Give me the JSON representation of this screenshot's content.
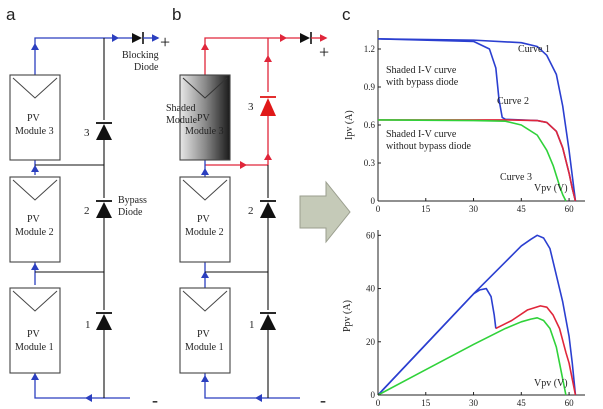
{
  "panels": {
    "a": {
      "letter": "a",
      "modules": [
        "PV",
        "Module 3",
        "PV",
        "Module 2",
        "PV",
        "Module 1"
      ],
      "diode_numbers": [
        "3",
        "2",
        "1"
      ],
      "blocking_label": [
        "Blocking",
        "Diode"
      ],
      "bypass_label": [
        "Bypass",
        "Diode"
      ],
      "plus": "+",
      "minus": "-"
    },
    "b": {
      "letter": "b",
      "shaded_label": [
        "Shaded",
        "Module"
      ],
      "modules": [
        "PV",
        "Module 3",
        "PV",
        "Module 2",
        "PV",
        "Module 1"
      ],
      "diode_numbers": [
        "3",
        "2",
        "1"
      ],
      "plus": "+",
      "minus": "-"
    },
    "c": {
      "letter": "c",
      "iv_curve_labels": [
        "Curve 1",
        "Curve 2",
        "Curve 3"
      ],
      "annotation_with": [
        "Shaded I-V curve",
        "with bypass diode"
      ],
      "annotation_without": [
        "Shaded I-V curve",
        "without bypass diode"
      ]
    }
  },
  "colors": {
    "wire_blue": "#2b3fbf",
    "curve_blue": "#2b3fd0",
    "curve_red": "#e0263a",
    "curve_green": "#30d23a",
    "diode_black": "#111111",
    "diode_red": "#e01818",
    "arrow_fill": "#c5cab8"
  },
  "chart_data": [
    {
      "type": "line",
      "xlabel": "Vpv (V)",
      "ylabel": "Ipv (A)",
      "xlim": [
        0,
        65
      ],
      "ylim": [
        0,
        1.35
      ],
      "xticks": [
        "0",
        "15",
        "30",
        "45",
        "60"
      ],
      "yticks": [
        "0",
        "0.3",
        "0.6",
        "0.9",
        "1.2"
      ],
      "grid": false,
      "series": [
        {
          "name": "Curve 1",
          "color": "#2b3fd0",
          "x": [
            0,
            30,
            45,
            50,
            53,
            56,
            58,
            60,
            61,
            62
          ],
          "y": [
            1.28,
            1.27,
            1.25,
            1.22,
            1.15,
            1.0,
            0.75,
            0.4,
            0.2,
            0
          ]
        },
        {
          "name": "Curve 2",
          "color": "#2b3fd0",
          "x": [
            0,
            30,
            35,
            37,
            38,
            39,
            40,
            45,
            50,
            53,
            56,
            58,
            60,
            61,
            62
          ],
          "y": [
            1.28,
            1.26,
            1.2,
            1.05,
            0.8,
            0.66,
            0.645,
            0.64,
            0.635,
            0.62,
            0.55,
            0.42,
            0.22,
            0.1,
            0
          ]
        },
        {
          "name": "",
          "color": "#e0263a",
          "x": [
            0,
            40,
            50,
            53,
            56,
            58,
            60,
            61,
            62
          ],
          "y": [
            0.64,
            0.64,
            0.635,
            0.62,
            0.55,
            0.42,
            0.22,
            0.1,
            0
          ]
        },
        {
          "name": "Curve 3",
          "color": "#30d23a",
          "x": [
            0,
            30,
            40,
            45,
            50,
            53,
            55,
            57,
            58,
            59
          ],
          "y": [
            0.64,
            0.635,
            0.63,
            0.6,
            0.52,
            0.4,
            0.28,
            0.12,
            0.05,
            0
          ]
        }
      ]
    },
    {
      "type": "line",
      "xlabel": "Vpv (V)",
      "ylabel": "Ppv (A)",
      "xlim": [
        0,
        65
      ],
      "ylim": [
        0,
        62
      ],
      "xticks": [
        "0",
        "15",
        "30",
        "45",
        "60"
      ],
      "yticks": [
        "0",
        "20",
        "40",
        "60"
      ],
      "grid": false,
      "series": [
        {
          "name": "Curve 1",
          "color": "#2b3fd0",
          "x": [
            0,
            15,
            30,
            40,
            45,
            48,
            50,
            52,
            54,
            56,
            58,
            60,
            61,
            62
          ],
          "y": [
            0,
            19,
            38,
            50,
            56,
            58.5,
            60,
            59,
            55,
            45,
            35,
            22,
            12,
            0
          ]
        },
        {
          "name": "Curve 2",
          "color": "#2b3fd0",
          "x": [
            0,
            15,
            30,
            32,
            34,
            35.5,
            36.5,
            37
          ],
          "y": [
            0,
            19,
            38,
            39.5,
            40,
            37,
            30,
            25
          ]
        },
        {
          "name": "",
          "color": "#e0263a",
          "x": [
            37,
            42,
            47,
            51,
            53,
            55,
            57,
            59,
            60,
            61,
            62
          ],
          "y": [
            25,
            28,
            32,
            33.5,
            33,
            30,
            25,
            16,
            12,
            6,
            0
          ]
        },
        {
          "name": "Curve 3",
          "color": "#30d23a",
          "x": [
            0,
            15,
            30,
            40,
            45,
            48,
            50,
            52,
            54,
            56,
            57,
            58,
            59
          ],
          "y": [
            0,
            9.5,
            19,
            25,
            27.5,
            28.5,
            29,
            28,
            25,
            18,
            12,
            6,
            0
          ]
        }
      ]
    }
  ]
}
